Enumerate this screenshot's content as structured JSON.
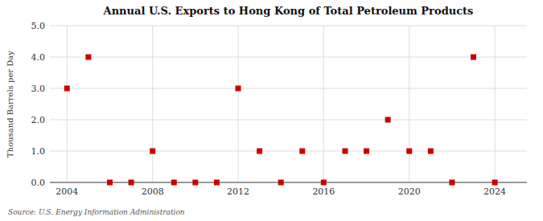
{
  "chart_data": {
    "type": "scatter",
    "title": "Annual U.S. Exports to Hong Kong of Total Petroleum Products",
    "ylabel": "Thousand Barrels per Day",
    "source": "Source: U.S. Energy Information Administration",
    "x": [
      2004,
      2005,
      2006,
      2007,
      2008,
      2009,
      2010,
      2011,
      2012,
      2013,
      2014,
      2015,
      2016,
      2017,
      2018,
      2019,
      2020,
      2021,
      2022,
      2023,
      2024
    ],
    "values": [
      3.0,
      4.0,
      0.0,
      0.0,
      1.0,
      0.0,
      0.0,
      0.0,
      3.0,
      1.0,
      0.0,
      1.0,
      0.0,
      1.0,
      1.0,
      2.0,
      1.0,
      1.0,
      0.0,
      4.0,
      0.0
    ],
    "color": "#cc0000",
    "marker": "square",
    "grid": true,
    "xlim": [
      2003.2,
      2025.5
    ],
    "ylim": [
      0.0,
      5.0
    ],
    "xticks": [
      2004,
      2008,
      2012,
      2016,
      2020,
      2024
    ],
    "yticks": [
      {
        "value": 0.0,
        "label": "0.0"
      },
      {
        "value": 1.0,
        "label": "1.0"
      },
      {
        "value": 2.0,
        "label": "2.0"
      },
      {
        "value": 3.0,
        "label": "3.0"
      },
      {
        "value": 4.0,
        "label": "4.0"
      },
      {
        "value": 5.0,
        "label": "5.0"
      }
    ]
  }
}
